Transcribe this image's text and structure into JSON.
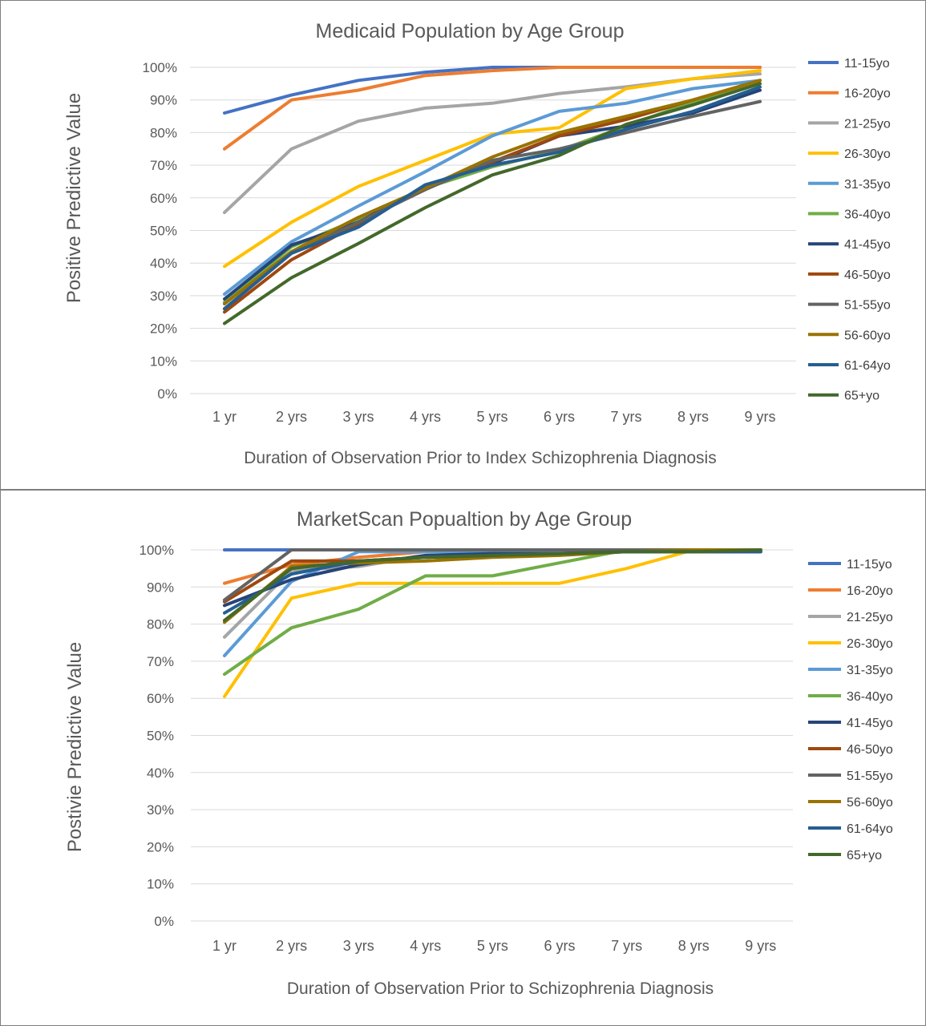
{
  "chart_data": [
    {
      "type": "line",
      "title": "Medicaid Population by Age Group",
      "xlabel": "Duration of Observation Prior to Index Schizophrenia Diagnosis",
      "ylabel": "Positive Predictive Value",
      "categories": [
        "1 yr",
        "2 yrs",
        "3 yrs",
        "4 yrs",
        "5 yrs",
        "6 yrs",
        "7 yrs",
        "8 yrs",
        "9 yrs"
      ],
      "ylim": [
        0,
        100
      ],
      "yticks": [
        "0%",
        "10%",
        "20%",
        "30%",
        "40%",
        "50%",
        "60%",
        "70%",
        "80%",
        "90%",
        "100%"
      ],
      "grid": true,
      "legend": "right",
      "series": [
        {
          "name": "11-15yo",
          "color": "#4472C4",
          "values": [
            86,
            91.5,
            96,
            98.5,
            100,
            100,
            100,
            100,
            100
          ]
        },
        {
          "name": "16-20yo",
          "color": "#ED7D31",
          "values": [
            75,
            90,
            93,
            97.5,
            99,
            100,
            100,
            100,
            100
          ]
        },
        {
          "name": "21-25yo",
          "color": "#A5A5A5",
          "values": [
            55.5,
            75,
            83.5,
            87.5,
            89,
            92,
            94,
            96.5,
            98
          ]
        },
        {
          "name": "26-30yo",
          "color": "#FFC000",
          "values": [
            39,
            52.5,
            63.5,
            71.5,
            79.5,
            81.5,
            93.5,
            96.5,
            99
          ]
        },
        {
          "name": "31-35yo",
          "color": "#5B9BD5",
          "values": [
            30.5,
            46.5,
            57.5,
            68,
            79,
            86.5,
            89,
            93.5,
            96
          ]
        },
        {
          "name": "36-40yo",
          "color": "#70AD47",
          "values": [
            28,
            45,
            53.5,
            63,
            69.5,
            74.5,
            82,
            89.5,
            95
          ]
        },
        {
          "name": "41-45yo",
          "color": "#264478",
          "values": [
            29,
            45.5,
            52.5,
            63.5,
            70.5,
            79,
            82,
            86,
            93
          ]
        },
        {
          "name": "46-50yo",
          "color": "#9E480E",
          "values": [
            25,
            41,
            52,
            63.5,
            71,
            79,
            84,
            90,
            96
          ]
        },
        {
          "name": "51-55yo",
          "color": "#636363",
          "values": [
            26,
            43,
            52.5,
            62.5,
            71.5,
            75,
            80,
            85,
            89.5
          ]
        },
        {
          "name": "56-60yo",
          "color": "#997300",
          "values": [
            27.5,
            43.5,
            54,
            63,
            72.5,
            80,
            85,
            90,
            96
          ]
        },
        {
          "name": "61-64yo",
          "color": "#255E91",
          "values": [
            26,
            43,
            51,
            64,
            70,
            74,
            81,
            86.5,
            94
          ]
        },
        {
          "name": "65+yo",
          "color": "#43682B",
          "values": [
            21.5,
            35.5,
            46,
            57,
            67,
            73,
            82.5,
            88.5,
            95
          ]
        }
      ]
    },
    {
      "type": "line",
      "title": "MarketScan Popualtion by Age Group",
      "xlabel": "Duration of Observation Prior to Schizophrenia Diagnosis",
      "ylabel": "Postivie Predictive Value",
      "categories": [
        "1 yr",
        "2 yrs",
        "3 yrs",
        "4 yrs",
        "5 yrs",
        "6 yrs",
        "7 yrs",
        "8 yrs",
        "9 yrs"
      ],
      "ylim": [
        0,
        100
      ],
      "yticks": [
        "0%",
        "10%",
        "20%",
        "30%",
        "40%",
        "50%",
        "60%",
        "70%",
        "80%",
        "90%",
        "100%"
      ],
      "grid": true,
      "legend": "right",
      "series": [
        {
          "name": "11-15yo",
          "color": "#4472C4",
          "values": [
            100,
            100,
            100,
            100,
            100,
            100,
            100,
            100,
            100
          ]
        },
        {
          "name": "16-20yo",
          "color": "#ED7D31",
          "values": [
            91,
            96,
            98,
            99.5,
            100,
            100,
            100,
            100,
            100
          ]
        },
        {
          "name": "21-25yo",
          "color": "#A5A5A5",
          "values": [
            76.5,
            94.5,
            95.5,
            98.5,
            99,
            99.5,
            100,
            100,
            100
          ]
        },
        {
          "name": "26-30yo",
          "color": "#FFC000",
          "values": [
            60.5,
            87,
            91,
            91,
            91,
            91,
            95,
            100,
            100
          ]
        },
        {
          "name": "31-35yo",
          "color": "#5B9BD5",
          "values": [
            71.5,
            91.5,
            99.5,
            99.5,
            99.5,
            99.5,
            99.5,
            99.5,
            99.5
          ]
        },
        {
          "name": "36-40yo",
          "color": "#70AD47",
          "values": [
            66.5,
            79,
            84,
            93,
            93,
            96.5,
            100,
            100,
            100
          ]
        },
        {
          "name": "41-45yo",
          "color": "#264478",
          "values": [
            85,
            92,
            96,
            98.5,
            99,
            99,
            99.5,
            99.5,
            99.5
          ]
        },
        {
          "name": "46-50yo",
          "color": "#9E480E",
          "values": [
            86,
            97,
            97,
            98,
            98.5,
            99,
            99.5,
            99.5,
            99.5
          ]
        },
        {
          "name": "51-55yo",
          "color": "#636363",
          "values": [
            86.5,
            100,
            100,
            100,
            100,
            100,
            100,
            100,
            100
          ]
        },
        {
          "name": "56-60yo",
          "color": "#997300",
          "values": [
            80.5,
            95.5,
            96.5,
            97,
            98,
            98.5,
            99.5,
            100,
            100
          ]
        },
        {
          "name": "61-64yo",
          "color": "#255E91",
          "values": [
            83,
            93.5,
            97,
            98,
            98.5,
            99,
            99.5,
            99.5,
            99.5
          ]
        },
        {
          "name": "65+yo",
          "color": "#43682B",
          "values": [
            81,
            95,
            97,
            98,
            98.5,
            99,
            99.5,
            99.5,
            100
          ]
        }
      ]
    }
  ]
}
